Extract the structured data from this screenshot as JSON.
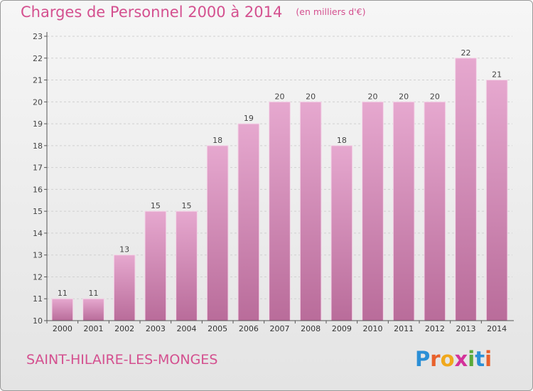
{
  "header": {
    "title": "Charges de Personnel 2000 à 2014",
    "unit": "(en milliers d'€)"
  },
  "footer": {
    "commune": "SAINT-HILAIRE-LES-MONGES",
    "logo": {
      "letters": [
        "P",
        "r",
        "o",
        "x",
        "i",
        "t",
        "i"
      ],
      "colors": [
        "#2b8fd6",
        "#e8612c",
        "#f0a81c",
        "#d4329a",
        "#5aaa3a",
        "#2b8fd6",
        "#e8612c"
      ]
    }
  },
  "colors": {
    "bar_light": "#e6a8cf",
    "bar_dark": "#b96c9a",
    "text_accent": "#d4508f"
  },
  "chart_data": {
    "type": "bar",
    "categories": [
      "2000",
      "2001",
      "2002",
      "2003",
      "2004",
      "2005",
      "2006",
      "2007",
      "2008",
      "2009",
      "2010",
      "2011",
      "2012",
      "2013",
      "2014"
    ],
    "values": [
      11,
      11,
      13,
      15,
      15,
      18,
      19,
      20,
      20,
      18,
      20,
      20,
      20,
      22,
      21
    ],
    "value_labels": [
      "11",
      "11",
      "13",
      "15",
      "15",
      "18",
      "19",
      "20",
      "20",
      "18",
      "20",
      "20",
      "20",
      "22",
      "21"
    ],
    "yticks": [
      10,
      11,
      12,
      13,
      14,
      15,
      16,
      17,
      18,
      19,
      20,
      21,
      22,
      23
    ],
    "ylim": [
      10,
      23
    ],
    "grid": true
  }
}
